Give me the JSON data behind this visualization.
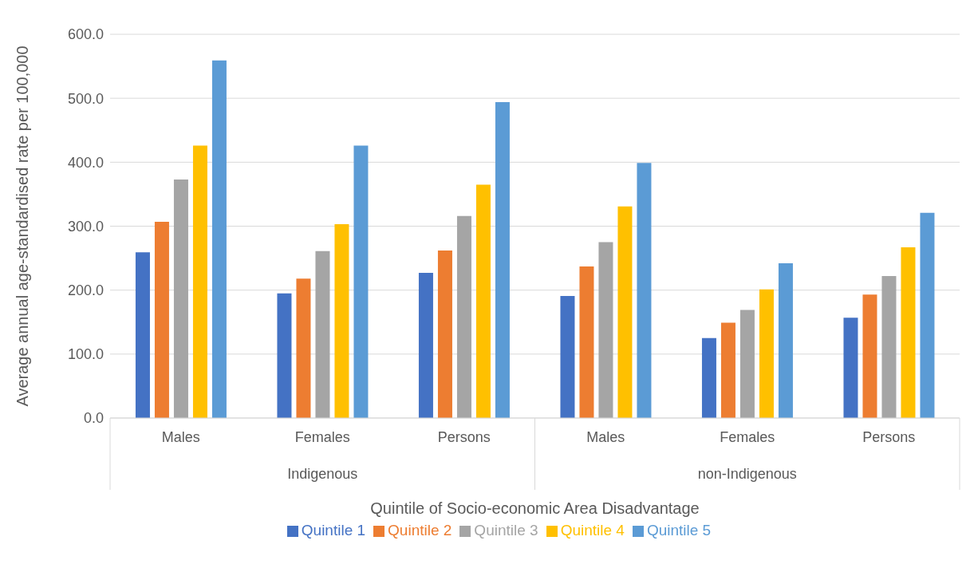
{
  "chart_data": {
    "type": "bar",
    "xlabel": "Quintile of Socio-economic Area Disadvantage",
    "ylabel": "Average annual age-standardised rate per 100,000",
    "categories": [
      "Males",
      "Females",
      "Persons",
      "Males",
      "Females",
      "Persons"
    ],
    "annotations": [
      "Indigenous",
      "non-Indigenous"
    ],
    "series": [
      {
        "name": "Quintile 1",
        "color": "#4472c4",
        "values": [
          259,
          195,
          227,
          191,
          125,
          157
        ]
      },
      {
        "name": "Quintile 2",
        "color": "#ed7d31",
        "values": [
          307,
          218,
          262,
          237,
          149,
          193
        ]
      },
      {
        "name": "Quintile 3",
        "color": "#a5a5a5",
        "values": [
          373,
          261,
          316,
          275,
          169,
          222
        ]
      },
      {
        "name": "Quintile 4",
        "color": "#ffc000",
        "values": [
          426,
          303,
          365,
          331,
          201,
          267
        ]
      },
      {
        "name": "Quintile 5",
        "color": "#5b9bd5",
        "values": [
          559,
          426,
          494,
          399,
          242,
          321
        ]
      }
    ],
    "ylim": [
      0,
      600
    ],
    "yticks": [
      {
        "value": 0,
        "label": "0.0"
      },
      {
        "value": 100,
        "label": "100.0"
      },
      {
        "value": 200,
        "label": "200.0"
      },
      {
        "value": 300,
        "label": "300.0"
      },
      {
        "value": 400,
        "label": "400.0"
      },
      {
        "value": 500,
        "label": "500.0"
      },
      {
        "value": 600,
        "label": "600.0"
      }
    ],
    "grid": "y",
    "legend": "bottom"
  }
}
